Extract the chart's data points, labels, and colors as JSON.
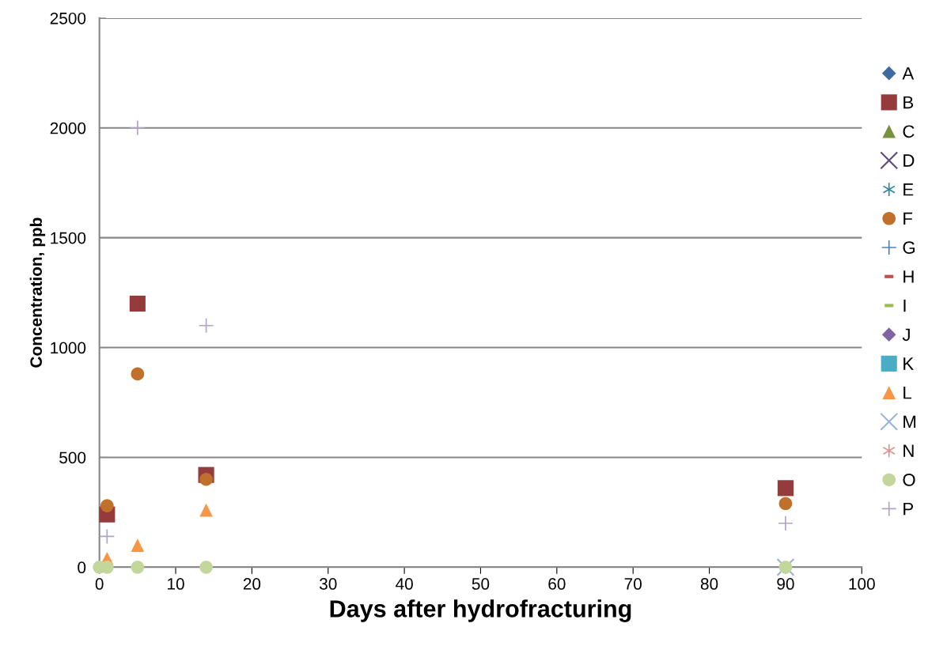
{
  "chart_data": {
    "type": "scatter",
    "xlabel": "Days after hydrofracturing",
    "ylabel": "Concentration, ppb",
    "x": [
      0,
      1,
      5,
      14,
      90
    ],
    "series": [
      {
        "name": "A",
        "color": "#3e6aa0",
        "marker": "diamond",
        "values": [
          null,
          null,
          null,
          null,
          null
        ]
      },
      {
        "name": "B",
        "color": "#963b3b",
        "marker": "square",
        "values": [
          null,
          240,
          1200,
          420,
          360
        ]
      },
      {
        "name": "C",
        "color": "#76923c",
        "marker": "triangle",
        "values": [
          null,
          null,
          null,
          null,
          null
        ]
      },
      {
        "name": "D",
        "color": "#5f497a",
        "marker": "x",
        "values": [
          null,
          null,
          null,
          null,
          null
        ]
      },
      {
        "name": "E",
        "color": "#31859c",
        "marker": "star",
        "values": [
          null,
          null,
          null,
          null,
          null
        ]
      },
      {
        "name": "F",
        "color": "#c0702a",
        "marker": "circle",
        "values": [
          null,
          280,
          880,
          400,
          290
        ]
      },
      {
        "name": "G",
        "color": "#4f81bd",
        "marker": "cross",
        "values": [
          null,
          null,
          null,
          null,
          null
        ]
      },
      {
        "name": "H",
        "color": "#c0504d",
        "marker": "dash",
        "values": [
          null,
          null,
          null,
          null,
          null
        ]
      },
      {
        "name": "I",
        "color": "#9bbb59",
        "marker": "dash",
        "values": [
          null,
          null,
          null,
          null,
          null
        ]
      },
      {
        "name": "J",
        "color": "#8064a2",
        "marker": "diamond",
        "values": [
          null,
          null,
          null,
          null,
          null
        ]
      },
      {
        "name": "K",
        "color": "#4bacc6",
        "marker": "square",
        "values": [
          null,
          null,
          null,
          null,
          null
        ]
      },
      {
        "name": "L",
        "color": "#f79646",
        "marker": "triangle",
        "values": [
          null,
          40,
          100,
          260,
          null
        ]
      },
      {
        "name": "M",
        "color": "#95b3d7",
        "marker": "x",
        "values": [
          null,
          null,
          null,
          null,
          0
        ]
      },
      {
        "name": "N",
        "color": "#d99694",
        "marker": "star",
        "values": [
          null,
          null,
          null,
          null,
          null
        ]
      },
      {
        "name": "O",
        "color": "#c3d69b",
        "marker": "circle",
        "values": [
          0,
          0,
          0,
          0,
          0
        ]
      },
      {
        "name": "P",
        "color": "#b3a2c7",
        "marker": "cross",
        "values": [
          null,
          140,
          2000,
          1100,
          200
        ]
      }
    ],
    "xlim": [
      0,
      100
    ],
    "xticks": [
      0,
      10,
      20,
      30,
      40,
      50,
      60,
      70,
      80,
      90,
      100
    ],
    "ylim": [
      0,
      2500
    ],
    "yticks": [
      0,
      500,
      1000,
      1500,
      2000,
      2500
    ],
    "grid": "y",
    "legend": "right"
  }
}
